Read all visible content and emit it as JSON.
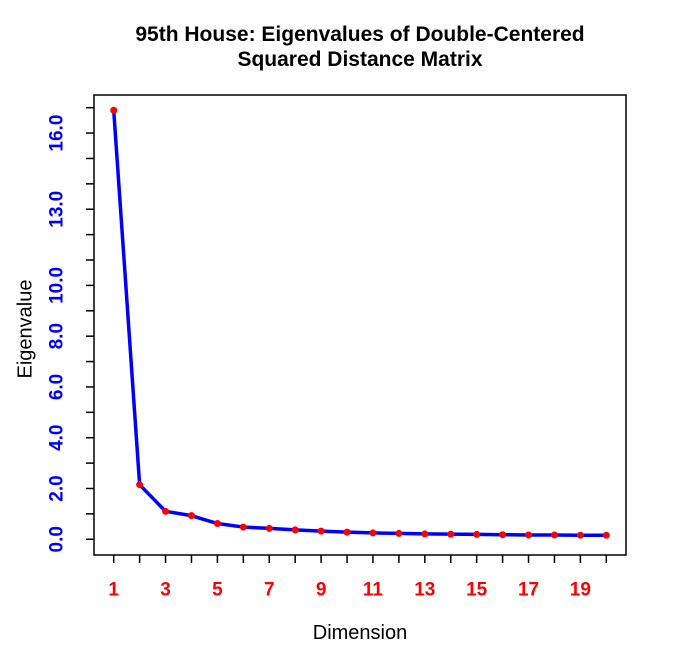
{
  "chart_data": {
    "type": "line",
    "title_line1": "95th House: Eigenvalues of Double-Centered",
    "title_line2": "Squared Distance Matrix",
    "xlabel": "Dimension",
    "ylabel": "Eigenvalue",
    "x": [
      1,
      2,
      3,
      4,
      5,
      6,
      7,
      8,
      9,
      10,
      11,
      12,
      13,
      14,
      15,
      16,
      17,
      18,
      19,
      20
    ],
    "values": [
      16.9,
      2.15,
      1.1,
      0.93,
      0.62,
      0.48,
      0.43,
      0.37,
      0.32,
      0.28,
      0.25,
      0.23,
      0.21,
      0.2,
      0.19,
      0.18,
      0.17,
      0.17,
      0.16,
      0.16
    ],
    "xlim": [
      0.24,
      20.76
    ],
    "ylim": [
      -0.62,
      17.5
    ],
    "x_ticks": [
      1,
      2,
      3,
      4,
      5,
      6,
      7,
      8,
      9,
      10,
      11,
      12,
      13,
      14,
      15,
      16,
      17,
      18,
      19,
      20
    ],
    "x_labeled_ticks": [
      {
        "v": 1,
        "label": "1"
      },
      {
        "v": 3,
        "label": "3"
      },
      {
        "v": 5,
        "label": "5"
      },
      {
        "v": 7,
        "label": "7"
      },
      {
        "v": 9,
        "label": "9"
      },
      {
        "v": 11,
        "label": "11"
      },
      {
        "v": 13,
        "label": "13"
      },
      {
        "v": 15,
        "label": "15"
      },
      {
        "v": 17,
        "label": "17"
      },
      {
        "v": 19,
        "label": "19"
      }
    ],
    "y_ticks": [
      0,
      1,
      2,
      3,
      4,
      5,
      6,
      7,
      8,
      9,
      10,
      11,
      12,
      13,
      14,
      15,
      16,
      17
    ],
    "y_labeled_ticks": [
      {
        "v": 0,
        "label": "0.0"
      },
      {
        "v": 2,
        "label": "2.0"
      },
      {
        "v": 4,
        "label": "4.0"
      },
      {
        "v": 6,
        "label": "6.0"
      },
      {
        "v": 8,
        "label": "8.0"
      },
      {
        "v": 10,
        "label": "10.0"
      },
      {
        "v": 13,
        "label": "13.0"
      },
      {
        "v": 16,
        "label": "16.0"
      }
    ],
    "grid": false,
    "legend": "none",
    "colors": {
      "line": "#0000ff",
      "point": "#ff0000",
      "x_tick_label": "#ff0000",
      "y_tick_label": "#0000ff",
      "axis": "#000000",
      "title": "#000000",
      "background": "#ffffff"
    }
  }
}
